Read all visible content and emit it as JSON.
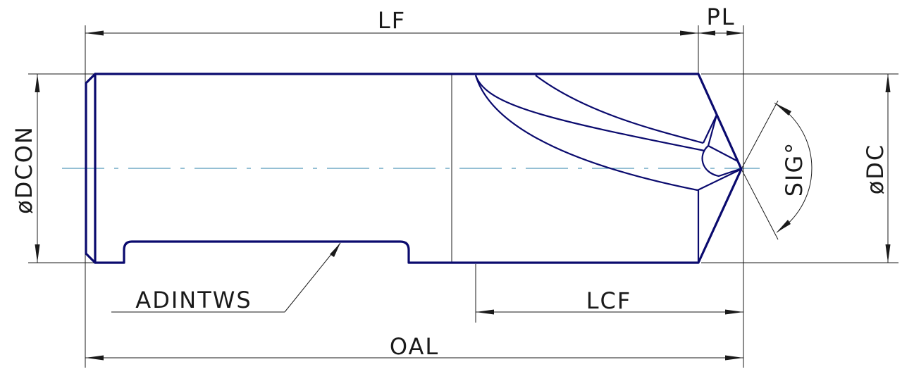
{
  "labels": {
    "lf": "LF",
    "pl": "PL",
    "dcon": "øDCON",
    "dc": "øDC",
    "sig": "SIG°",
    "adintws": "ADINTWS",
    "lcf": "LCF",
    "oal": "OAL"
  },
  "colors": {
    "outline": "#0a0a6e",
    "dimension": "#1a1a1a",
    "centerline": "#2a7fa8"
  }
}
